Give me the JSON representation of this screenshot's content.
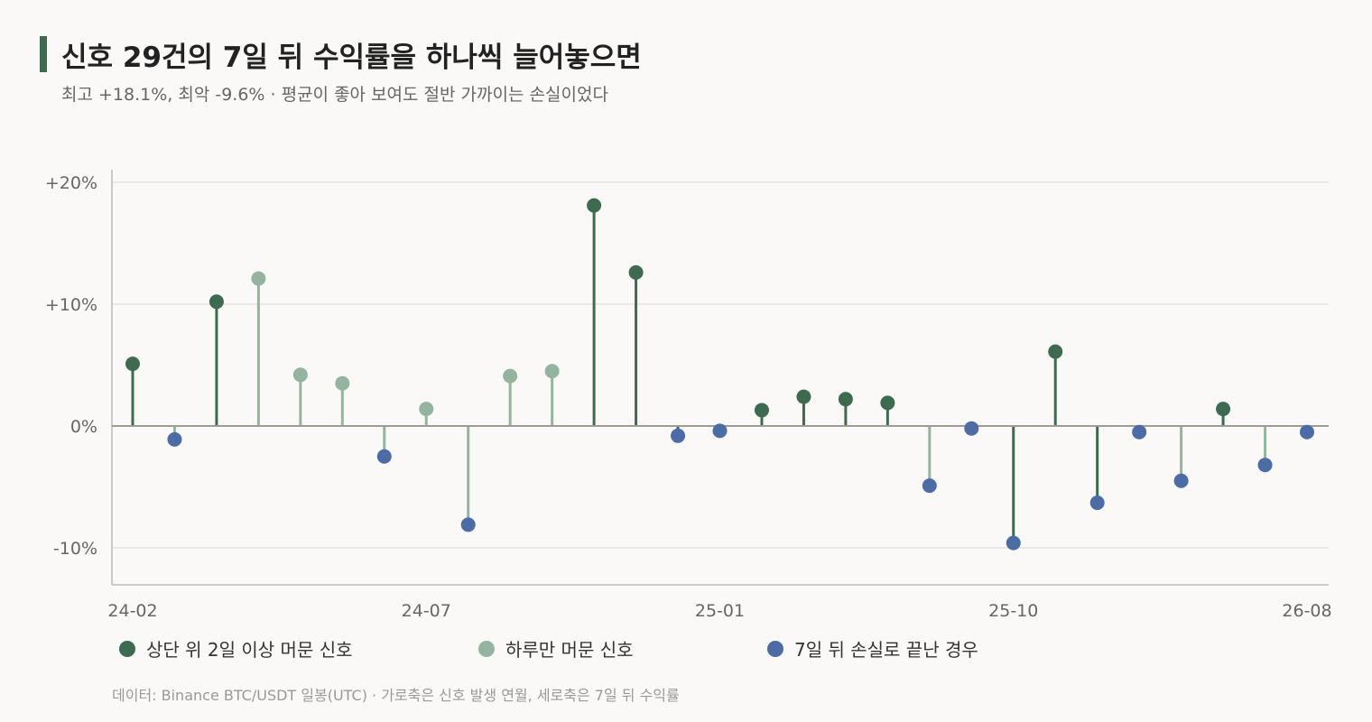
{
  "header": {
    "title": "신호 29건의 7일 뒤 수익률을 하나씩 늘어놓으면",
    "subtitle": "최고 +18.1%, 최악 -9.6% · 평균이 좋아 보여도 절반 가까이는 손실이었다"
  },
  "footnote": "데이터: Binance BTC/USDT 일봉(UTC) · 가로축은 신호 발생 연월, 세로축은 7일 뒤 수익률",
  "colors": {
    "multi": "#3d6b4f",
    "single": "#93b59f",
    "loss": "#4a6da7",
    "grid": "#e6e4df",
    "axis": "#bdbab3"
  },
  "chart_data": {
    "type": "lollipop",
    "y_unit": "%",
    "ylim": [
      -13,
      21
    ],
    "y_ticks": [
      20,
      10,
      0,
      -10
    ],
    "y_tick_labels": [
      "+20%",
      "+10%",
      "0%",
      "-10%"
    ],
    "x_tick_labels": [
      "24-02",
      "24-07",
      "25-01",
      "25-10",
      "26-08"
    ],
    "x_tick_positions": [
      0,
      7,
      14,
      21,
      28
    ],
    "grid": true,
    "legend_placement": "bottom",
    "legend": [
      {
        "key": "multi",
        "label": "상단 위 2일 이상 머문 신호"
      },
      {
        "key": "single",
        "label": "하루만 머문 신호"
      },
      {
        "key": "loss",
        "label": "7일 뒤 손실로 끝난 경우"
      }
    ],
    "points": [
      {
        "i": 0,
        "value": 5.1,
        "cat": "multi"
      },
      {
        "i": 1,
        "value": -1.1,
        "cat": "loss",
        "stem": "single"
      },
      {
        "i": 2,
        "value": 10.2,
        "cat": "multi"
      },
      {
        "i": 3,
        "value": 12.1,
        "cat": "single"
      },
      {
        "i": 4,
        "value": 4.2,
        "cat": "single"
      },
      {
        "i": 5,
        "value": 3.5,
        "cat": "single"
      },
      {
        "i": 6,
        "value": -2.5,
        "cat": "loss",
        "stem": "single"
      },
      {
        "i": 7,
        "value": 1.4,
        "cat": "single"
      },
      {
        "i": 8,
        "value": -8.1,
        "cat": "loss",
        "stem": "single"
      },
      {
        "i": 9,
        "value": 4.1,
        "cat": "single"
      },
      {
        "i": 10,
        "value": 4.5,
        "cat": "single"
      },
      {
        "i": 11,
        "value": 18.1,
        "cat": "multi"
      },
      {
        "i": 12,
        "value": 12.6,
        "cat": "multi"
      },
      {
        "i": 13,
        "value": -0.8,
        "cat": "loss",
        "stem": "multi"
      },
      {
        "i": 14,
        "value": -0.4,
        "cat": "loss",
        "stem": "multi"
      },
      {
        "i": 15,
        "value": 1.3,
        "cat": "multi"
      },
      {
        "i": 16,
        "value": 2.4,
        "cat": "multi"
      },
      {
        "i": 17,
        "value": 2.2,
        "cat": "multi"
      },
      {
        "i": 18,
        "value": 1.9,
        "cat": "multi"
      },
      {
        "i": 19,
        "value": -4.9,
        "cat": "loss",
        "stem": "single"
      },
      {
        "i": 20,
        "value": -0.2,
        "cat": "loss",
        "stem": "single"
      },
      {
        "i": 21,
        "value": -9.6,
        "cat": "loss",
        "stem": "multi"
      },
      {
        "i": 22,
        "value": 6.1,
        "cat": "multi"
      },
      {
        "i": 23,
        "value": -6.3,
        "cat": "loss",
        "stem": "multi"
      },
      {
        "i": 24,
        "value": -0.5,
        "cat": "loss",
        "stem": "multi"
      },
      {
        "i": 25,
        "value": -4.5,
        "cat": "loss",
        "stem": "single"
      },
      {
        "i": 26,
        "value": 1.4,
        "cat": "multi"
      },
      {
        "i": 27,
        "value": -3.2,
        "cat": "loss",
        "stem": "single"
      },
      {
        "i": 28,
        "value": -0.5,
        "cat": "loss",
        "stem": "multi"
      }
    ]
  }
}
